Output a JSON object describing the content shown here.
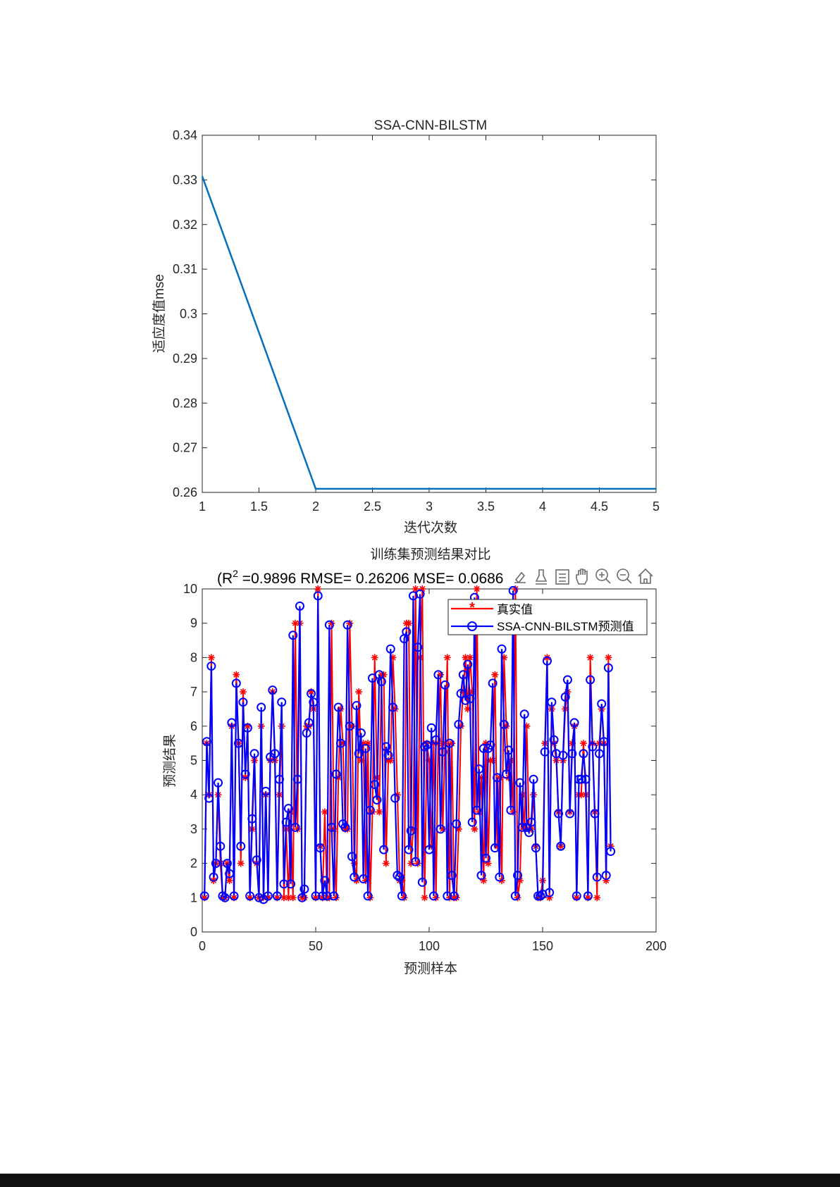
{
  "chart_data": [
    {
      "type": "line",
      "title": "SSA-CNN-BILSTM",
      "xlabel": "迭代次数",
      "ylabel": "适应度值mse",
      "xlim": [
        1,
        5
      ],
      "ylim": [
        0.26,
        0.34
      ],
      "xticks": [
        "1",
        "1.5",
        "2",
        "2.5",
        "3",
        "3.5",
        "4",
        "4.5",
        "5"
      ],
      "yticks": [
        "0.26",
        "0.27",
        "0.28",
        "0.29",
        "0.3",
        "0.31",
        "0.32",
        "0.33",
        "0.34"
      ],
      "grid": false,
      "series": [
        {
          "x": [
            1,
            2,
            3,
            4,
            5
          ],
          "values": [
            0.3308,
            0.2608,
            0.2608,
            0.2608,
            0.2608
          ],
          "color": "#0072BD"
        }
      ]
    },
    {
      "type": "line",
      "title": "训练集预测结果对比",
      "subtitle_prefix": "(R",
      "subtitle_sup": "2",
      "subtitle_rest": " =0.9896 RMSE= 0.26206 MSE= 0.0686",
      "xlabel": "预测样本",
      "ylabel": "预测结果",
      "xlim": [
        0,
        200
      ],
      "ylim": [
        0,
        10
      ],
      "xticks": [
        "0",
        "50",
        "100",
        "150",
        "200"
      ],
      "yticks": [
        "0",
        "1",
        "2",
        "3",
        "4",
        "5",
        "6",
        "7",
        "8",
        "9",
        "10"
      ],
      "grid": false,
      "legend_position": "top-right",
      "legend": [
        "真实值",
        "SSA-CNN-BILSTM预测值"
      ],
      "series_colors": [
        "#FF0000",
        "#0000FF"
      ],
      "series_markers": [
        "asterisk",
        "circle"
      ],
      "actual": [
        1,
        5.5,
        4,
        8,
        1.5,
        2,
        4,
        2,
        1,
        1,
        2,
        1.5,
        6,
        1,
        7.5,
        5.5,
        2,
        7,
        4.5,
        6,
        1,
        3,
        5,
        2,
        1,
        6,
        1,
        4,
        1,
        5,
        7,
        5,
        1,
        4,
        6,
        1,
        3,
        1,
        3.5,
        1,
        9,
        3,
        9,
        1,
        1,
        6,
        6,
        7,
        6.5,
        1,
        10,
        2.5,
        1,
        3.5,
        1,
        1,
        9,
        3,
        1,
        4.5,
        6.5,
        5.5,
        3,
        3,
        9,
        6,
        2,
        1.5,
        7,
        5,
        5.5,
        1.5,
        5.5,
        1,
        3.5,
        8,
        4.5,
        3.5,
        7.5,
        7.5,
        2,
        5,
        5,
        8,
        6.5,
        4,
        1.5,
        1.5,
        1,
        9,
        9,
        2,
        3,
        10,
        2,
        8,
        10,
        1,
        5.5,
        5,
        2.5,
        5.5,
        1,
        5.5,
        7.5,
        3,
        5.5,
        8,
        1,
        5.5,
        1,
        1,
        3,
        6,
        7,
        8,
        6.5,
        8,
        7,
        3,
        10,
        3.5,
        4.5,
        1.5,
        5.5,
        2,
        5,
        5,
        7.5,
        2.5,
        4.5,
        1.5,
        8,
        6,
        4.5,
        5,
        3.5,
        10,
        1,
        1.5,
        4,
        3,
        6,
        3,
        3,
        4,
        2.5,
        1,
        1,
        1.5,
        5.5,
        8,
        1,
        6.5,
        5.5,
        5,
        3.5,
        2.5,
        5,
        6.5,
        7,
        3.5,
        5.5,
        6,
        1,
        4,
        4,
        5.5,
        4,
        1,
        8,
        5.5,
        3.5,
        1,
        5.5,
        6.5,
        5.5,
        1.5,
        8,
        2.5
      ],
      "predicted": [
        1.05,
        5.55,
        3.9,
        7.75,
        1.6,
        2,
        4.35,
        2.5,
        1.05,
        1,
        2,
        1.7,
        6.1,
        1.05,
        7.25,
        5.5,
        2.5,
        6.7,
        4.6,
        5.95,
        1.05,
        3.3,
        5.2,
        2.1,
        1,
        6.55,
        0.95,
        4.1,
        1.05,
        5.1,
        7.05,
        5.2,
        1.05,
        4.45,
        6.7,
        1.4,
        3.2,
        3.6,
        1.4,
        8.65,
        3.05,
        4.45,
        9.5,
        1,
        1.25,
        5.8,
        6.1,
        6.95,
        6.7,
        1.05,
        9.8,
        2.45,
        1.05,
        1.5,
        1.05,
        8.95,
        3.05,
        1.05,
        4.6,
        6.55,
        5.5,
        3.15,
        3.05,
        8.95,
        6,
        2.2,
        1.6,
        6.6,
        5.2,
        5.8,
        1.55,
        5.35,
        1.05,
        3.55,
        7.4,
        4.3,
        3.85,
        7.5,
        7.3,
        2.4,
        5.4,
        5.15,
        8.25,
        6.55,
        3.9,
        1.65,
        1.6,
        1.05,
        8.55,
        8.75,
        2.4,
        2.95,
        9.8,
        2.05,
        8.3,
        9.85,
        1.45,
        5.4,
        5.45,
        2.4,
        5.95,
        1.05,
        5.6,
        7.5,
        3,
        5.25,
        7.2,
        1.05,
        5.5,
        1.65,
        1.05,
        3.15,
        6.05,
        6.95,
        7.5,
        6.75,
        7.8,
        6.8,
        3.2,
        9.75,
        3.55,
        4.75,
        1.65,
        5.35,
        2.15,
        5.35,
        5.45,
        7.25,
        2.45,
        4.5,
        1.6,
        8.25,
        6.05,
        4.6,
        5.3,
        3.55,
        9.95,
        1.05,
        1.65,
        4.35,
        3.05,
        6.35,
        3.05,
        2.9,
        3.2,
        4.45,
        2.45,
        1.05,
        1.05,
        1.1,
        5.25,
        7.9,
        1.15,
        6.7,
        5.6,
        5.2,
        3.45,
        2.5,
        5.15,
        6.85,
        7.35,
        3.45,
        5.2,
        6.1,
        1.05,
        4.45,
        4.45,
        5.2,
        4.45,
        1.05,
        7.35,
        5.4,
        3.45,
        1.6,
        5.2,
        6.65,
        5.55,
        1.65,
        7.7,
        2.35
      ]
    }
  ],
  "toolbar": {
    "icons": [
      "brush-icon",
      "data-tips-icon",
      "legend-icon",
      "pan-icon",
      "zoom-in-icon",
      "zoom-out-icon",
      "home-icon"
    ]
  }
}
